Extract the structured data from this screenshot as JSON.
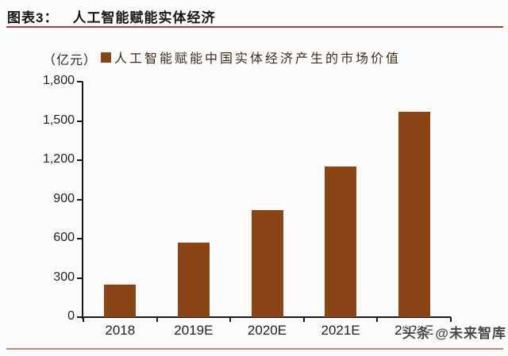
{
  "header": {
    "title_prefix": "图表3：",
    "title": "人工智能赋能实体经济"
  },
  "legend": {
    "unit": "（亿元）",
    "label": "人工智能赋能中国实体经济产生的市场价值"
  },
  "watermark": {
    "text": "头条 @未来智库"
  },
  "colors": {
    "bar": "#8a4415",
    "title_rule": "#a93f3b",
    "bottom_rule": "#d4837c",
    "axis": "#1a1a1a"
  },
  "chart_data": {
    "type": "bar",
    "title": "人工智能赋能中国实体经济产生的市场价值",
    "unit": "亿元",
    "categories": [
      "2018",
      "2019E",
      "2020E",
      "2021E",
      "2022E"
    ],
    "values": [
      250,
      570,
      820,
      1150,
      1570
    ],
    "xlabel": "",
    "ylabel": "（亿元）",
    "ylim": [
      0,
      1800
    ],
    "ytick_interval": 300,
    "ytick_labels": [
      "0",
      "300",
      "600",
      "900",
      "1,200",
      "1,500",
      "1,800"
    ],
    "grid": false,
    "legend_position": "top",
    "bar_color": "#8a4415"
  }
}
